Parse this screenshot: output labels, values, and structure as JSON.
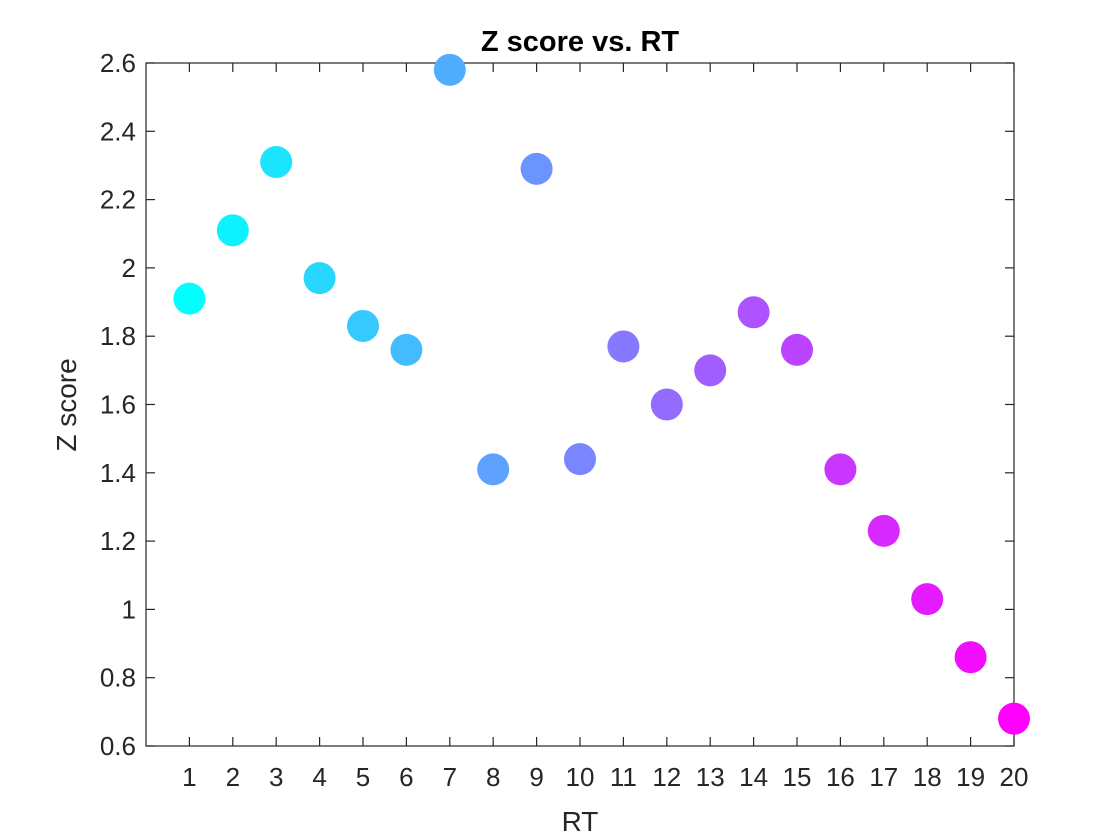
{
  "chart_data": {
    "type": "scatter",
    "title": "Z score vs. RT",
    "xlabel": "RT",
    "ylabel": "Z score",
    "xlim": [
      0,
      20
    ],
    "ylim": [
      0.6,
      2.6
    ],
    "xticks": [
      "1",
      "2",
      "3",
      "4",
      "5",
      "6",
      "7",
      "8",
      "9",
      "10",
      "11",
      "12",
      "13",
      "14",
      "15",
      "16",
      "17",
      "18",
      "19",
      "20"
    ],
    "yticks": [
      "0.6",
      "0.8",
      "1",
      "1.2",
      "1.4",
      "1.6",
      "1.8",
      "2",
      "2.2",
      "2.4",
      "2.6"
    ],
    "grid": false,
    "legend": "none",
    "colormap": "cool",
    "color_start": "#00ffff",
    "color_end": "#ff00ff",
    "points": [
      {
        "x": 1,
        "y": 1.91
      },
      {
        "x": 2,
        "y": 2.11
      },
      {
        "x": 3,
        "y": 2.31
      },
      {
        "x": 4,
        "y": 1.97
      },
      {
        "x": 5,
        "y": 1.83
      },
      {
        "x": 6,
        "y": 1.76
      },
      {
        "x": 7,
        "y": 2.58
      },
      {
        "x": 8,
        "y": 1.41
      },
      {
        "x": 9,
        "y": 2.29
      },
      {
        "x": 10,
        "y": 1.44
      },
      {
        "x": 11,
        "y": 1.77
      },
      {
        "x": 12,
        "y": 1.6
      },
      {
        "x": 13,
        "y": 1.7
      },
      {
        "x": 14,
        "y": 1.87
      },
      {
        "x": 15,
        "y": 1.76
      },
      {
        "x": 16,
        "y": 1.41
      },
      {
        "x": 17,
        "y": 1.23
      },
      {
        "x": 18,
        "y": 1.03
      },
      {
        "x": 19,
        "y": 0.86
      },
      {
        "x": 20,
        "y": 0.68
      }
    ]
  }
}
